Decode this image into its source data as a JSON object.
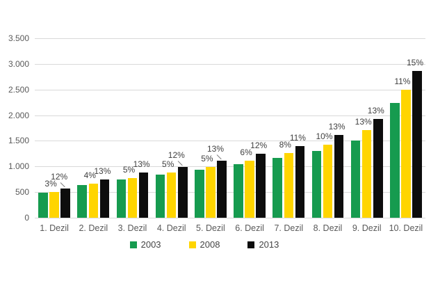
{
  "chart_data": {
    "type": "bar",
    "title": "",
    "categories": [
      "1. Dezil",
      "2. Dezil",
      "3. Dezil",
      "4. Dezil",
      "5. Dezil",
      "6. Dezil",
      "7. Dezil",
      "8. Dezil",
      "9. Dezil",
      "10. Dezil"
    ],
    "series": [
      {
        "name": "2003",
        "color": "#169B4F",
        "values": [
          490,
          635,
          745,
          840,
          940,
          1050,
          1160,
          1300,
          1510,
          2235
        ]
      },
      {
        "name": "2008",
        "color": "#FFD500",
        "values": [
          505,
          660,
          780,
          885,
          990,
          1115,
          1255,
          1430,
          1705,
          2490
        ]
      },
      {
        "name": "2013",
        "color": "#0D0D0D",
        "values": [
          565,
          745,
          880,
          990,
          1115,
          1250,
          1395,
          1615,
          1925,
          2865
        ]
      }
    ],
    "bar_labels": {
      "series_2008": [
        "3%",
        "4%",
        "5%",
        "5%",
        "5%",
        "6%",
        "8%",
        "10%",
        "13%",
        "11%"
      ],
      "series_2013": [
        "12%",
        "13%",
        "13%",
        "12%",
        "13%",
        "12%",
        "11%",
        "13%",
        "13%",
        "15%"
      ]
    },
    "leader_line_groups": [
      0,
      3,
      4
    ],
    "y_axis": {
      "min": 0,
      "max": 3500,
      "ticks": [
        {
          "value": 3500,
          "label": "3.500"
        },
        {
          "value": 3000,
          "label": "3.000"
        },
        {
          "value": 2500,
          "label": "2.500"
        },
        {
          "value": 2000,
          "label": "2.000"
        },
        {
          "value": 1500,
          "label": "1.500"
        },
        {
          "value": 1000,
          "label": "1.000"
        },
        {
          "value": 500,
          "label": "500"
        },
        {
          "value": 0,
          "label": "0"
        }
      ]
    },
    "grid": true,
    "legend_position": "bottom",
    "legend": [
      "2003",
      "2008",
      "2013"
    ],
    "colors": {
      "background": "#ffffff",
      "grid": "#d9d9d9",
      "tick_text": "#595959",
      "category_text": "#595959",
      "bar_label_text": "#3f3f3f",
      "leader_line": "#7f7f7f",
      "legend_text": "#454545"
    }
  }
}
